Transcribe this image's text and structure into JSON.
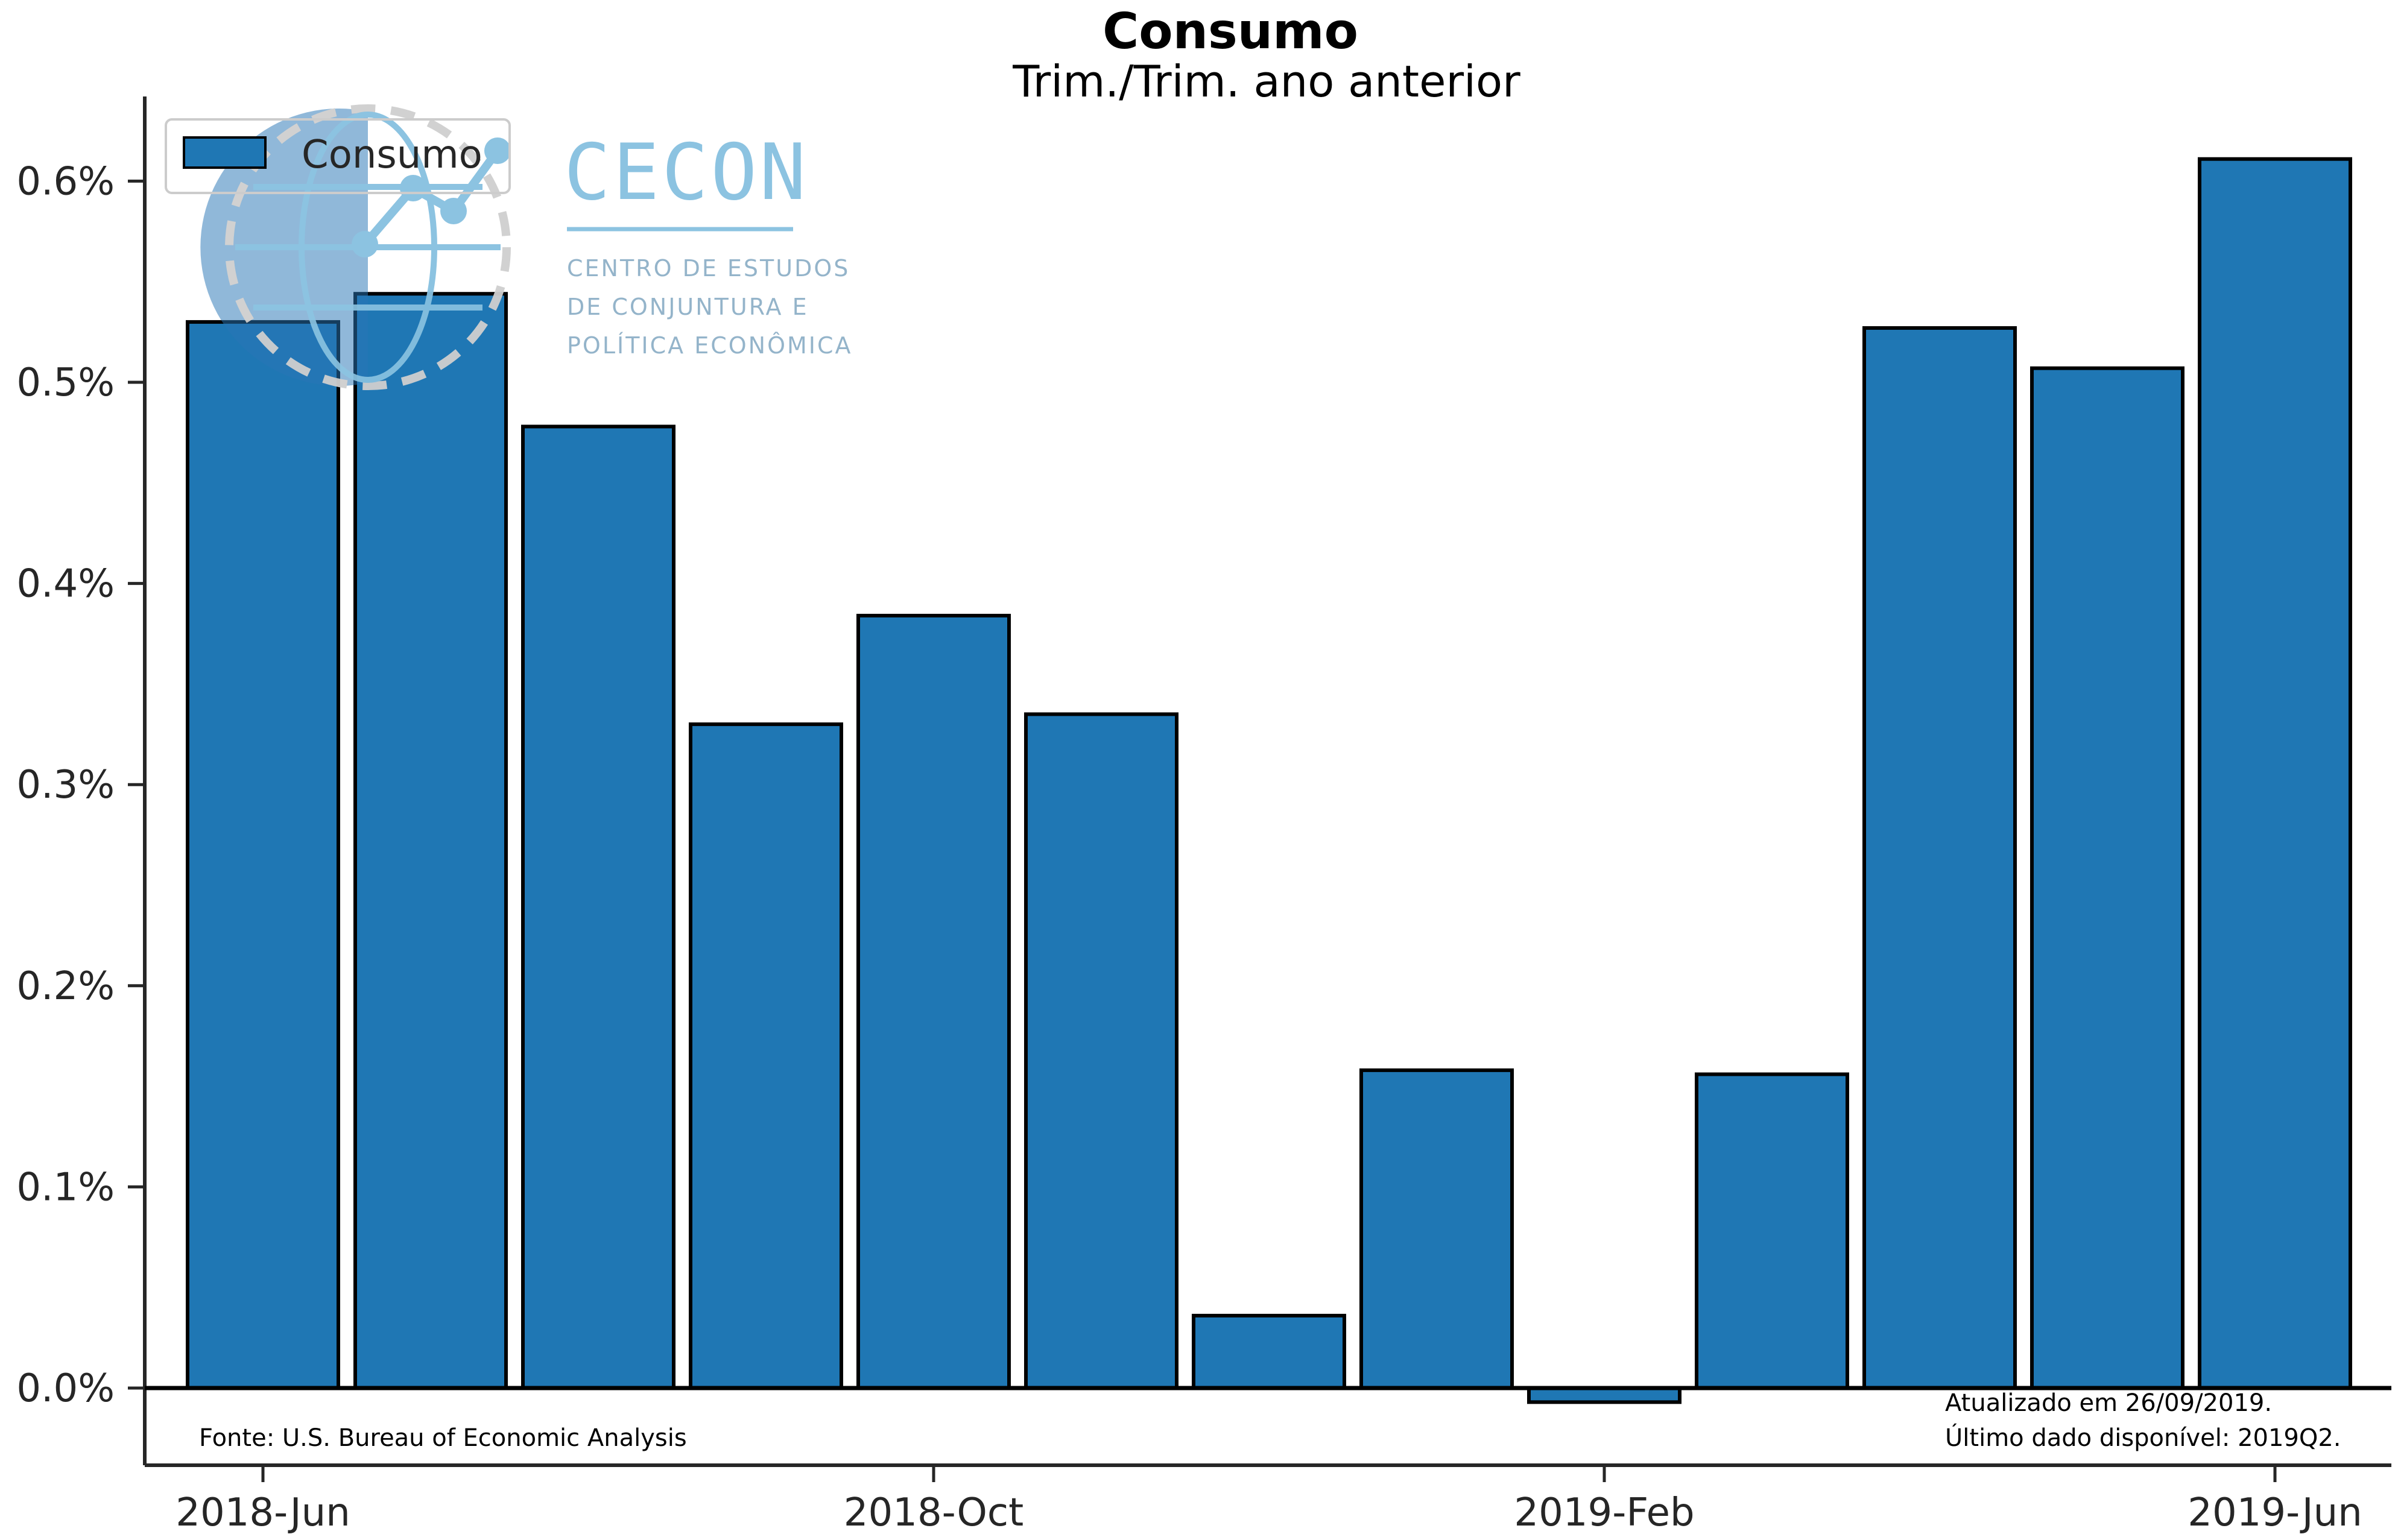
{
  "title": "Consumo",
  "subtitle": "Trim./Trim. ano anterior",
  "colors": {
    "bar": "#1f77b4",
    "bar_edge": "#000000",
    "axis": "#262626",
    "logo": "#86c0e0"
  },
  "logo": {
    "word": "CECON",
    "lines": [
      "CENTRO DE ESTUDOS",
      "DE CONJUNTURA E",
      "POLÍTICA ECONÔMICA"
    ]
  },
  "footnotes": {
    "source": "Fonte: U.S. Bureau of Economic Analysis",
    "updated": "Atualizado em 26/09/2019.",
    "last": "Último dado disponível: 2019Q2."
  },
  "chart_data": {
    "type": "bar",
    "title": "Consumo",
    "subtitle": "Trim./Trim. ano anterior",
    "xlabel": "",
    "ylabel": "",
    "x_tick_labels": [
      "2018-Jun",
      "2018-Oct",
      "2019-Feb",
      "2019-Jun"
    ],
    "y_tick_labels": [
      "0.0%",
      "0.1%",
      "0.2%",
      "0.3%",
      "0.4%",
      "0.5%",
      "0.6%"
    ],
    "y_ticks": [
      0.0,
      0.1,
      0.2,
      0.3,
      0.4,
      0.5,
      0.6
    ],
    "ylim": [
      -0.04,
      0.64
    ],
    "legend_position": "top-left",
    "grid": false,
    "series": [
      {
        "name": "Consumo",
        "values": [
          0.53,
          0.544,
          0.478,
          0.33,
          0.384,
          0.335,
          0.036,
          0.158,
          -0.007,
          0.156,
          0.527,
          0.507,
          0.611
        ]
      }
    ]
  }
}
